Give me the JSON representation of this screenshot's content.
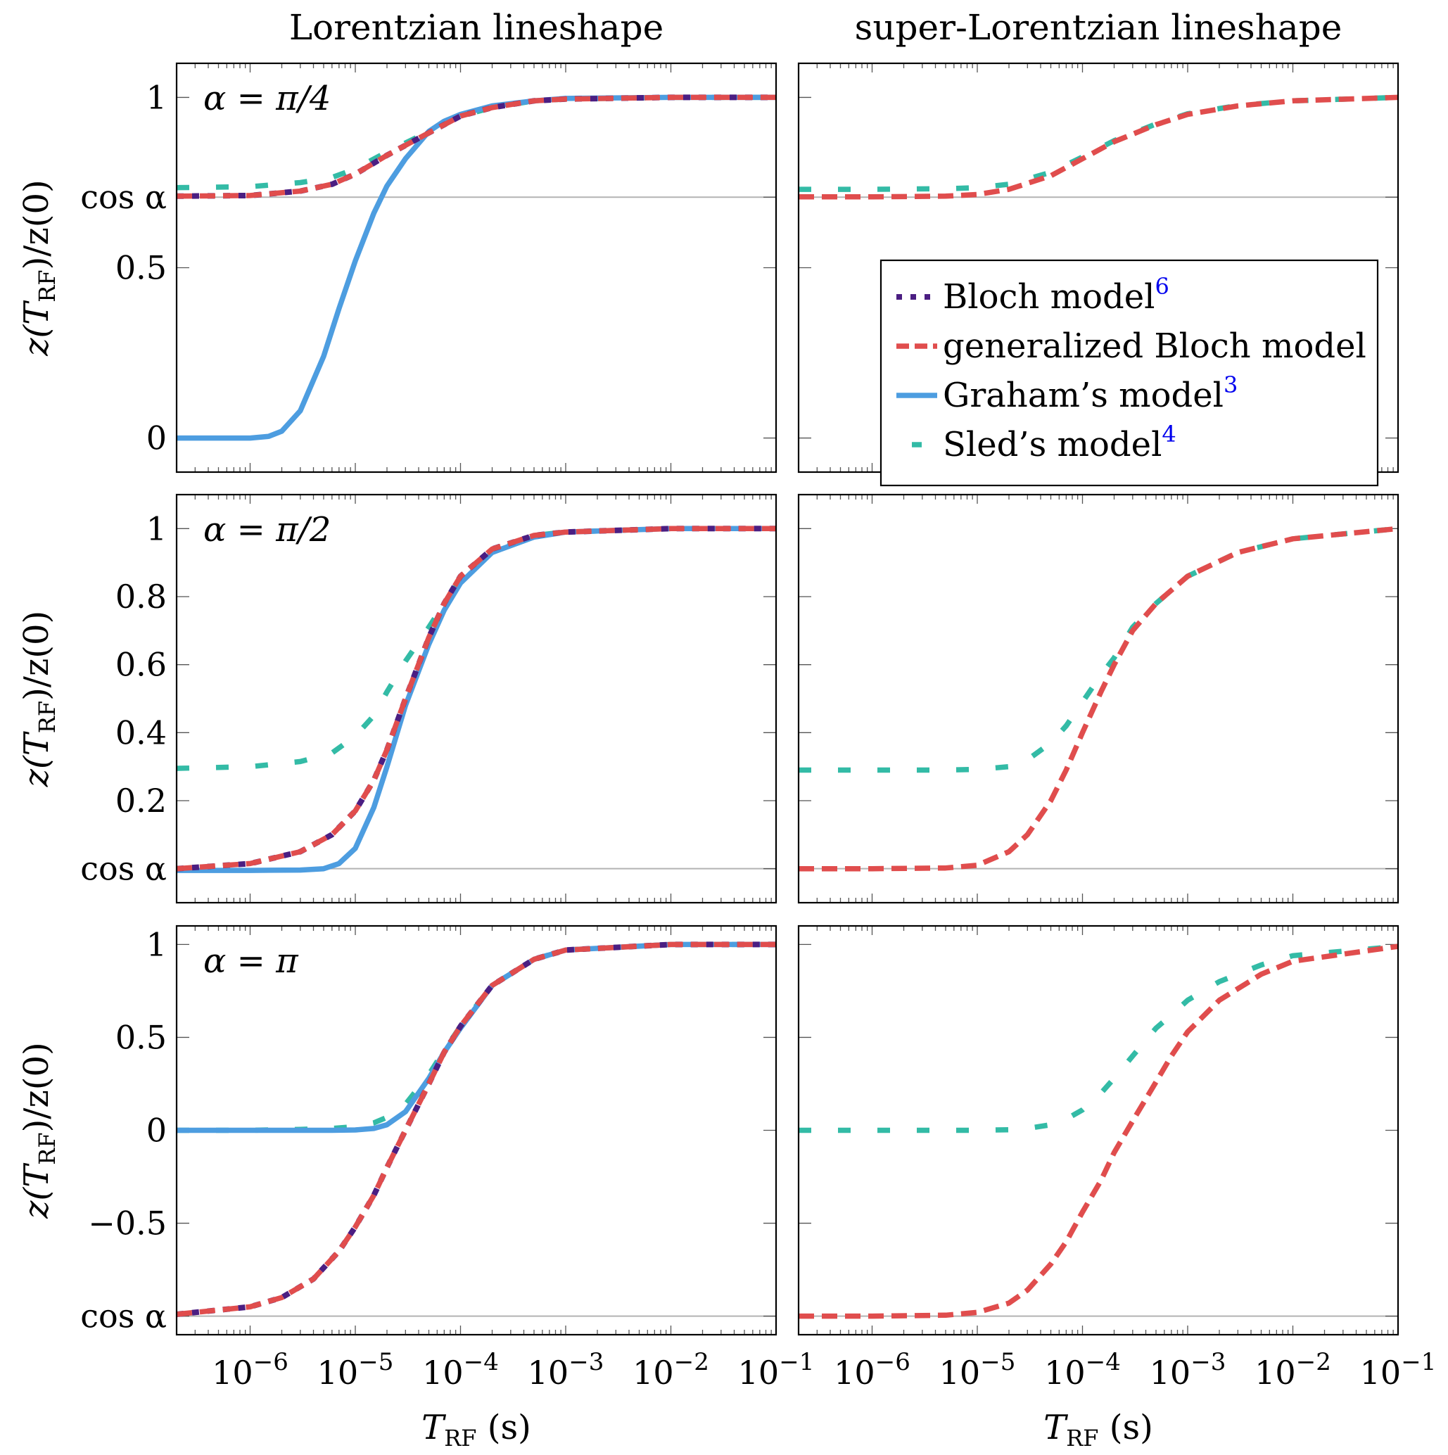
{
  "figure": {
    "column_titles": [
      "Lorentzian lineshape",
      "super-Lorentzian lineshape"
    ],
    "xlabel": "T_RF (s)",
    "ylabel": "z(T_RF)/z(0)",
    "xticklabels": [
      "10^-6",
      "10^-5",
      "10^-4",
      "10^-3",
      "10^-2",
      "10^-1"
    ],
    "cos_alpha_label": "cos α"
  },
  "legend": {
    "entries": [
      {
        "label": "Bloch model",
        "ref": "6",
        "color": "#4b1e82",
        "style": "dotted"
      },
      {
        "label": "generalized Bloch model",
        "ref": "",
        "color": "#e04d4d",
        "style": "dashed"
      },
      {
        "label": "Graham’s model",
        "ref": "3",
        "color": "#4d9de0",
        "style": "solid"
      },
      {
        "label": "Sled’s model",
        "ref": "4",
        "color": "#33bba6",
        "style": "sparse-dashed"
      }
    ]
  },
  "chart_data": [
    {
      "type": "line",
      "row": 0,
      "col": 0,
      "panel_label": "α = π/4",
      "x_scale": "log",
      "xlim": [
        2e-07,
        0.1
      ],
      "ylim": [
        -0.1,
        1.1
      ],
      "yticks": [
        {
          "value": 0,
          "label": "0"
        },
        {
          "value": 0.5,
          "label": "0.5"
        },
        {
          "value": 0.7071,
          "label": "cos α"
        },
        {
          "value": 1,
          "label": "1"
        }
      ],
      "cos_alpha": 0.7071,
      "series": [
        {
          "name": "Bloch model",
          "x": [
            2e-07,
            1e-06,
            3e-06,
            6e-06,
            1e-05,
            2e-05,
            4e-05,
            7e-05,
            0.0001,
            0.0002,
            0.0005,
            0.001,
            0.01,
            0.1
          ],
          "values": [
            0.71,
            0.712,
            0.725,
            0.745,
            0.775,
            0.83,
            0.88,
            0.92,
            0.945,
            0.97,
            0.99,
            0.995,
            1.0,
            1.0
          ]
        },
        {
          "name": "generalized Bloch model",
          "x": [
            2e-07,
            1e-06,
            3e-06,
            6e-06,
            1e-05,
            2e-05,
            4e-05,
            7e-05,
            0.0001,
            0.0002,
            0.0005,
            0.001,
            0.01,
            0.1
          ],
          "values": [
            0.71,
            0.712,
            0.725,
            0.745,
            0.775,
            0.83,
            0.88,
            0.92,
            0.945,
            0.97,
            0.99,
            0.995,
            1.0,
            1.0
          ]
        },
        {
          "name": "Graham’s model",
          "x": [
            2e-07,
            1e-06,
            1.5e-06,
            2e-06,
            3e-06,
            5e-06,
            7e-06,
            1e-05,
            1.5e-05,
            2e-05,
            3e-05,
            5e-05,
            7e-05,
            0.0001,
            0.0002,
            0.0005,
            0.001,
            0.01,
            0.1
          ],
          "values": [
            0.0,
            0.0,
            0.005,
            0.02,
            0.08,
            0.24,
            0.38,
            0.52,
            0.66,
            0.74,
            0.82,
            0.9,
            0.93,
            0.95,
            0.975,
            0.99,
            0.997,
            1.0,
            1.0
          ]
        },
        {
          "name": "Sled’s model",
          "x": [
            2e-07,
            1e-06,
            3e-06,
            6e-06,
            1e-05,
            2e-05,
            4e-05,
            7e-05,
            0.0001,
            0.0002,
            0.0005,
            0.001,
            0.01,
            0.1
          ],
          "values": [
            0.735,
            0.738,
            0.75,
            0.765,
            0.79,
            0.84,
            0.885,
            0.92,
            0.945,
            0.97,
            0.99,
            0.995,
            1.0,
            1.0
          ]
        }
      ]
    },
    {
      "type": "line",
      "row": 0,
      "col": 1,
      "panel_label": "",
      "x_scale": "log",
      "xlim": [
        2e-07,
        0.1
      ],
      "ylim": [
        -0.1,
        1.1
      ],
      "yticks": [
        {
          "value": 0,
          "label": ""
        },
        {
          "value": 0.5,
          "label": ""
        },
        {
          "value": 0.7071,
          "label": ""
        },
        {
          "value": 1,
          "label": ""
        }
      ],
      "cos_alpha": 0.7071,
      "series": [
        {
          "name": "generalized Bloch model",
          "x": [
            2e-07,
            1e-06,
            5e-06,
            1e-05,
            2e-05,
            5e-05,
            0.0001,
            0.0002,
            0.0005,
            0.001,
            0.003,
            0.01,
            0.1
          ],
          "values": [
            0.708,
            0.708,
            0.71,
            0.715,
            0.73,
            0.77,
            0.82,
            0.87,
            0.92,
            0.95,
            0.975,
            0.99,
            1.0
          ]
        },
        {
          "name": "Sled’s model",
          "x": [
            2e-07,
            1e-06,
            5e-06,
            1e-05,
            2e-05,
            5e-05,
            0.0001,
            0.0002,
            0.0005,
            0.001,
            0.003,
            0.01,
            0.1
          ],
          "values": [
            0.73,
            0.73,
            0.732,
            0.735,
            0.745,
            0.78,
            0.825,
            0.873,
            0.922,
            0.952,
            0.976,
            0.99,
            1.0
          ]
        }
      ]
    },
    {
      "type": "line",
      "row": 1,
      "col": 0,
      "panel_label": "α = π/2",
      "x_scale": "log",
      "xlim": [
        2e-07,
        0.1
      ],
      "ylim": [
        -0.1,
        1.1
      ],
      "yticks": [
        {
          "value": 0,
          "label": "cos α"
        },
        {
          "value": 0.2,
          "label": "0.2"
        },
        {
          "value": 0.4,
          "label": "0.4"
        },
        {
          "value": 0.6,
          "label": "0.6"
        },
        {
          "value": 0.8,
          "label": "0.8"
        },
        {
          "value": 1,
          "label": "1"
        }
      ],
      "cos_alpha": 0.0,
      "series": [
        {
          "name": "Bloch model",
          "x": [
            2e-07,
            1e-06,
            3e-06,
            6e-06,
            1e-05,
            1.5e-05,
            2e-05,
            3e-05,
            5e-05,
            7e-05,
            0.0001,
            0.0002,
            0.0005,
            0.001,
            0.01,
            0.1
          ],
          "values": [
            0.0,
            0.015,
            0.05,
            0.1,
            0.17,
            0.26,
            0.35,
            0.5,
            0.68,
            0.78,
            0.86,
            0.94,
            0.98,
            0.99,
            1.0,
            1.0
          ]
        },
        {
          "name": "generalized Bloch model",
          "x": [
            2e-07,
            1e-06,
            3e-06,
            6e-06,
            1e-05,
            1.5e-05,
            2e-05,
            3e-05,
            5e-05,
            7e-05,
            0.0001,
            0.0002,
            0.0005,
            0.001,
            0.01,
            0.1
          ],
          "values": [
            0.0,
            0.015,
            0.05,
            0.1,
            0.17,
            0.26,
            0.35,
            0.5,
            0.68,
            0.78,
            0.86,
            0.94,
            0.98,
            0.99,
            1.0,
            1.0
          ]
        },
        {
          "name": "Graham’s model",
          "x": [
            2e-07,
            1e-06,
            3e-06,
            5e-06,
            7e-06,
            1e-05,
            1.5e-05,
            2e-05,
            3e-05,
            5e-05,
            7e-05,
            0.0001,
            0.0002,
            0.0005,
            0.001,
            0.01,
            0.1
          ],
          "values": [
            -0.005,
            -0.005,
            -0.004,
            0.0,
            0.015,
            0.06,
            0.18,
            0.3,
            0.48,
            0.66,
            0.76,
            0.84,
            0.93,
            0.975,
            0.99,
            1.0,
            1.0
          ]
        },
        {
          "name": "Sled’s model",
          "x": [
            2e-07,
            1e-06,
            3e-06,
            6e-06,
            1e-05,
            1.5e-05,
            2e-05,
            3e-05,
            5e-05,
            7e-05,
            0.0001,
            0.0002,
            0.0005,
            0.001,
            0.01,
            0.1
          ],
          "values": [
            0.295,
            0.3,
            0.315,
            0.34,
            0.39,
            0.45,
            0.52,
            0.61,
            0.71,
            0.78,
            0.85,
            0.93,
            0.98,
            0.99,
            1.0,
            1.0
          ]
        }
      ]
    },
    {
      "type": "line",
      "row": 1,
      "col": 1,
      "panel_label": "",
      "x_scale": "log",
      "xlim": [
        2e-07,
        0.1
      ],
      "ylim": [
        -0.1,
        1.1
      ],
      "yticks": [
        {
          "value": 0,
          "label": ""
        },
        {
          "value": 0.2,
          "label": ""
        },
        {
          "value": 0.4,
          "label": ""
        },
        {
          "value": 0.6,
          "label": ""
        },
        {
          "value": 0.8,
          "label": ""
        },
        {
          "value": 1,
          "label": ""
        }
      ],
      "cos_alpha": 0.0,
      "series": [
        {
          "name": "generalized Bloch model",
          "x": [
            2e-07,
            1e-06,
            5e-06,
            1e-05,
            2e-05,
            3e-05,
            5e-05,
            7e-05,
            0.0001,
            0.00015,
            0.0002,
            0.0003,
            0.0005,
            0.001,
            0.003,
            0.01,
            0.1
          ],
          "values": [
            0.0,
            0.0,
            0.002,
            0.01,
            0.05,
            0.1,
            0.2,
            0.29,
            0.4,
            0.52,
            0.6,
            0.7,
            0.78,
            0.86,
            0.93,
            0.97,
            1.0
          ]
        },
        {
          "name": "Sled’s model",
          "x": [
            2e-07,
            1e-06,
            5e-06,
            1e-05,
            2e-05,
            3e-05,
            5e-05,
            7e-05,
            0.0001,
            0.00015,
            0.0002,
            0.0003,
            0.0005,
            0.001,
            0.003,
            0.01,
            0.1
          ],
          "values": [
            0.29,
            0.29,
            0.29,
            0.292,
            0.3,
            0.32,
            0.37,
            0.42,
            0.49,
            0.57,
            0.62,
            0.71,
            0.78,
            0.86,
            0.93,
            0.97,
            1.0
          ]
        }
      ]
    },
    {
      "type": "line",
      "row": 2,
      "col": 0,
      "panel_label": "α = π",
      "x_scale": "log",
      "xlim": [
        2e-07,
        0.1
      ],
      "ylim": [
        -1.1,
        1.1
      ],
      "yticks": [
        {
          "value": -1,
          "label": "cos α"
        },
        {
          "value": -0.5,
          "label": "−0.5"
        },
        {
          "value": 0,
          "label": "0"
        },
        {
          "value": 0.5,
          "label": "0.5"
        },
        {
          "value": 1,
          "label": "1"
        }
      ],
      "cos_alpha": -1.0,
      "series": [
        {
          "name": "Bloch model",
          "x": [
            2e-07,
            1e-06,
            2e-06,
            4e-06,
            7e-06,
            1e-05,
            1.5e-05,
            2e-05,
            3e-05,
            5e-05,
            7e-05,
            0.0001,
            0.0002,
            0.0005,
            0.001,
            0.01,
            0.1
          ],
          "values": [
            -0.99,
            -0.95,
            -0.9,
            -0.8,
            -0.65,
            -0.52,
            -0.35,
            -0.2,
            0.0,
            0.25,
            0.42,
            0.56,
            0.78,
            0.92,
            0.97,
            1.0,
            1.0
          ]
        },
        {
          "name": "generalized Bloch model",
          "x": [
            2e-07,
            1e-06,
            2e-06,
            4e-06,
            7e-06,
            1e-05,
            1.5e-05,
            2e-05,
            3e-05,
            5e-05,
            7e-05,
            0.0001,
            0.0002,
            0.0005,
            0.001,
            0.01,
            0.1
          ],
          "values": [
            -0.99,
            -0.95,
            -0.9,
            -0.8,
            -0.65,
            -0.52,
            -0.35,
            -0.2,
            0.0,
            0.25,
            0.42,
            0.56,
            0.78,
            0.92,
            0.97,
            1.0,
            1.0
          ]
        },
        {
          "name": "Graham’s model",
          "x": [
            2e-07,
            1e-06,
            3e-06,
            6e-06,
            1e-05,
            1.5e-05,
            2e-05,
            3e-05,
            5e-05,
            7e-05,
            0.0001,
            0.0002,
            0.0005,
            0.001,
            0.01,
            0.1
          ],
          "values": [
            0.0,
            0.0,
            0.0,
            0.0,
            0.002,
            0.01,
            0.03,
            0.1,
            0.28,
            0.42,
            0.55,
            0.78,
            0.92,
            0.97,
            1.0,
            1.0
          ]
        },
        {
          "name": "Sled’s model",
          "x": [
            2e-07,
            1e-06,
            3e-06,
            6e-06,
            1e-05,
            1.5e-05,
            2e-05,
            3e-05,
            5e-05,
            7e-05,
            0.0001,
            0.0002,
            0.0005,
            0.001,
            0.01,
            0.1
          ],
          "values": [
            0.0,
            0.0,
            0.005,
            0.01,
            0.02,
            0.04,
            0.07,
            0.14,
            0.3,
            0.43,
            0.56,
            0.78,
            0.92,
            0.97,
            1.0,
            1.0
          ]
        }
      ]
    },
    {
      "type": "line",
      "row": 2,
      "col": 1,
      "panel_label": "",
      "x_scale": "log",
      "xlim": [
        2e-07,
        0.1
      ],
      "ylim": [
        -1.1,
        1.1
      ],
      "yticks": [
        {
          "value": -1,
          "label": ""
        },
        {
          "value": -0.5,
          "label": ""
        },
        {
          "value": 0,
          "label": ""
        },
        {
          "value": 0.5,
          "label": ""
        },
        {
          "value": 1,
          "label": ""
        }
      ],
      "cos_alpha": -1.0,
      "series": [
        {
          "name": "generalized Bloch model",
          "x": [
            2e-07,
            1e-06,
            5e-06,
            1e-05,
            2e-05,
            3e-05,
            5e-05,
            7e-05,
            0.0001,
            0.00015,
            0.0002,
            0.0003,
            0.0005,
            0.0007,
            0.001,
            0.002,
            0.005,
            0.01,
            0.1
          ],
          "values": [
            -1.0,
            -1.0,
            -0.995,
            -0.98,
            -0.93,
            -0.86,
            -0.72,
            -0.6,
            -0.44,
            -0.27,
            -0.12,
            0.05,
            0.26,
            0.4,
            0.53,
            0.7,
            0.84,
            0.91,
            0.99
          ]
        },
        {
          "name": "Sled’s model",
          "x": [
            2e-07,
            1e-06,
            5e-06,
            1e-05,
            2e-05,
            3e-05,
            5e-05,
            7e-05,
            0.0001,
            0.00015,
            0.0002,
            0.0003,
            0.0005,
            0.0007,
            0.001,
            0.002,
            0.005,
            0.01,
            0.1
          ],
          "values": [
            0.0,
            0.0,
            0.0,
            0.0,
            0.003,
            0.01,
            0.03,
            0.06,
            0.11,
            0.2,
            0.28,
            0.4,
            0.55,
            0.62,
            0.7,
            0.8,
            0.89,
            0.94,
            0.99
          ]
        }
      ]
    }
  ]
}
